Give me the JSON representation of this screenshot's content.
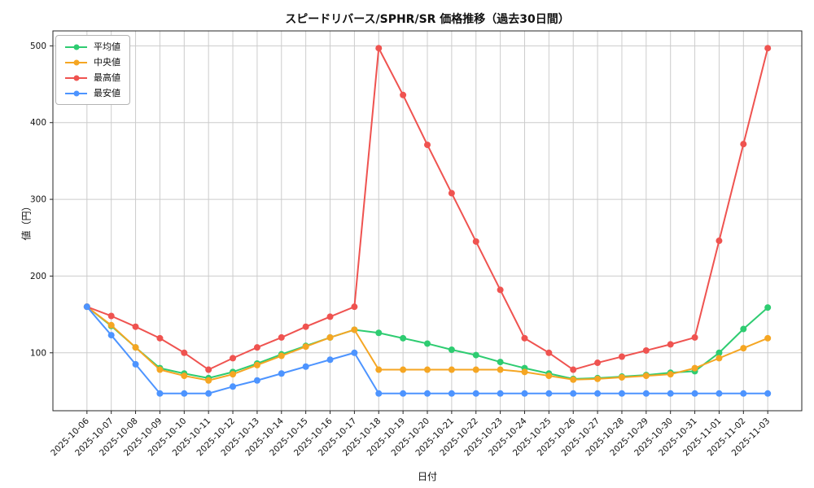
{
  "chart_data": {
    "type": "line",
    "title": "スピードリバース/SPHR/SR 価格推移（過去30日間）",
    "xlabel": "日付",
    "ylabel": "値（円）",
    "ylim": [
      24.5,
      519.5
    ],
    "yticks": [
      100,
      200,
      300,
      400,
      500
    ],
    "grid": true,
    "legend_position": "upper left",
    "categories": [
      "2025-10-06",
      "2025-10-07",
      "2025-10-08",
      "2025-10-09",
      "2025-10-10",
      "2025-10-11",
      "2025-10-12",
      "2025-10-13",
      "2025-10-14",
      "2025-10-15",
      "2025-10-16",
      "2025-10-17",
      "2025-10-18",
      "2025-10-19",
      "2025-10-20",
      "2025-10-21",
      "2025-10-22",
      "2025-10-23",
      "2025-10-24",
      "2025-10-25",
      "2025-10-26",
      "2025-10-27",
      "2025-10-28",
      "2025-10-29",
      "2025-10-30",
      "2025-10-31",
      "2025-11-01",
      "2025-11-02",
      "2025-11-03"
    ],
    "series": [
      {
        "name": "平均値",
        "color": "#2ecc71",
        "values": [
          160,
          135,
          107,
          80,
          73,
          67,
          75,
          86,
          98,
          109,
          120,
          130,
          126,
          119,
          112,
          104,
          97,
          88,
          80,
          73,
          66,
          67,
          69,
          71,
          74,
          76,
          100,
          131,
          159
        ]
      },
      {
        "name": "中央値",
        "color": "#f5a623",
        "values": [
          160,
          136,
          107,
          78,
          70,
          64,
          72,
          84,
          96,
          108,
          120,
          130,
          78,
          78,
          78,
          78,
          78,
          78,
          75,
          70,
          65,
          66,
          68,
          70,
          72,
          80,
          93,
          106,
          119
        ]
      },
      {
        "name": "最高値",
        "color": "#ef5350",
        "values": [
          160,
          148,
          134,
          119,
          100,
          78,
          93,
          107,
          120,
          134,
          147,
          160,
          497,
          436,
          371,
          308,
          245,
          182,
          119,
          100,
          78,
          87,
          95,
          103,
          111,
          120,
          246,
          372,
          497
        ]
      },
      {
        "name": "最安値",
        "color": "#4d94ff",
        "values": [
          160,
          123,
          85,
          47,
          47,
          47,
          56,
          64,
          73,
          82,
          91,
          100,
          47,
          47,
          47,
          47,
          47,
          47,
          47,
          47,
          47,
          47,
          47,
          47,
          47,
          47,
          47,
          47,
          47
        ]
      }
    ]
  }
}
